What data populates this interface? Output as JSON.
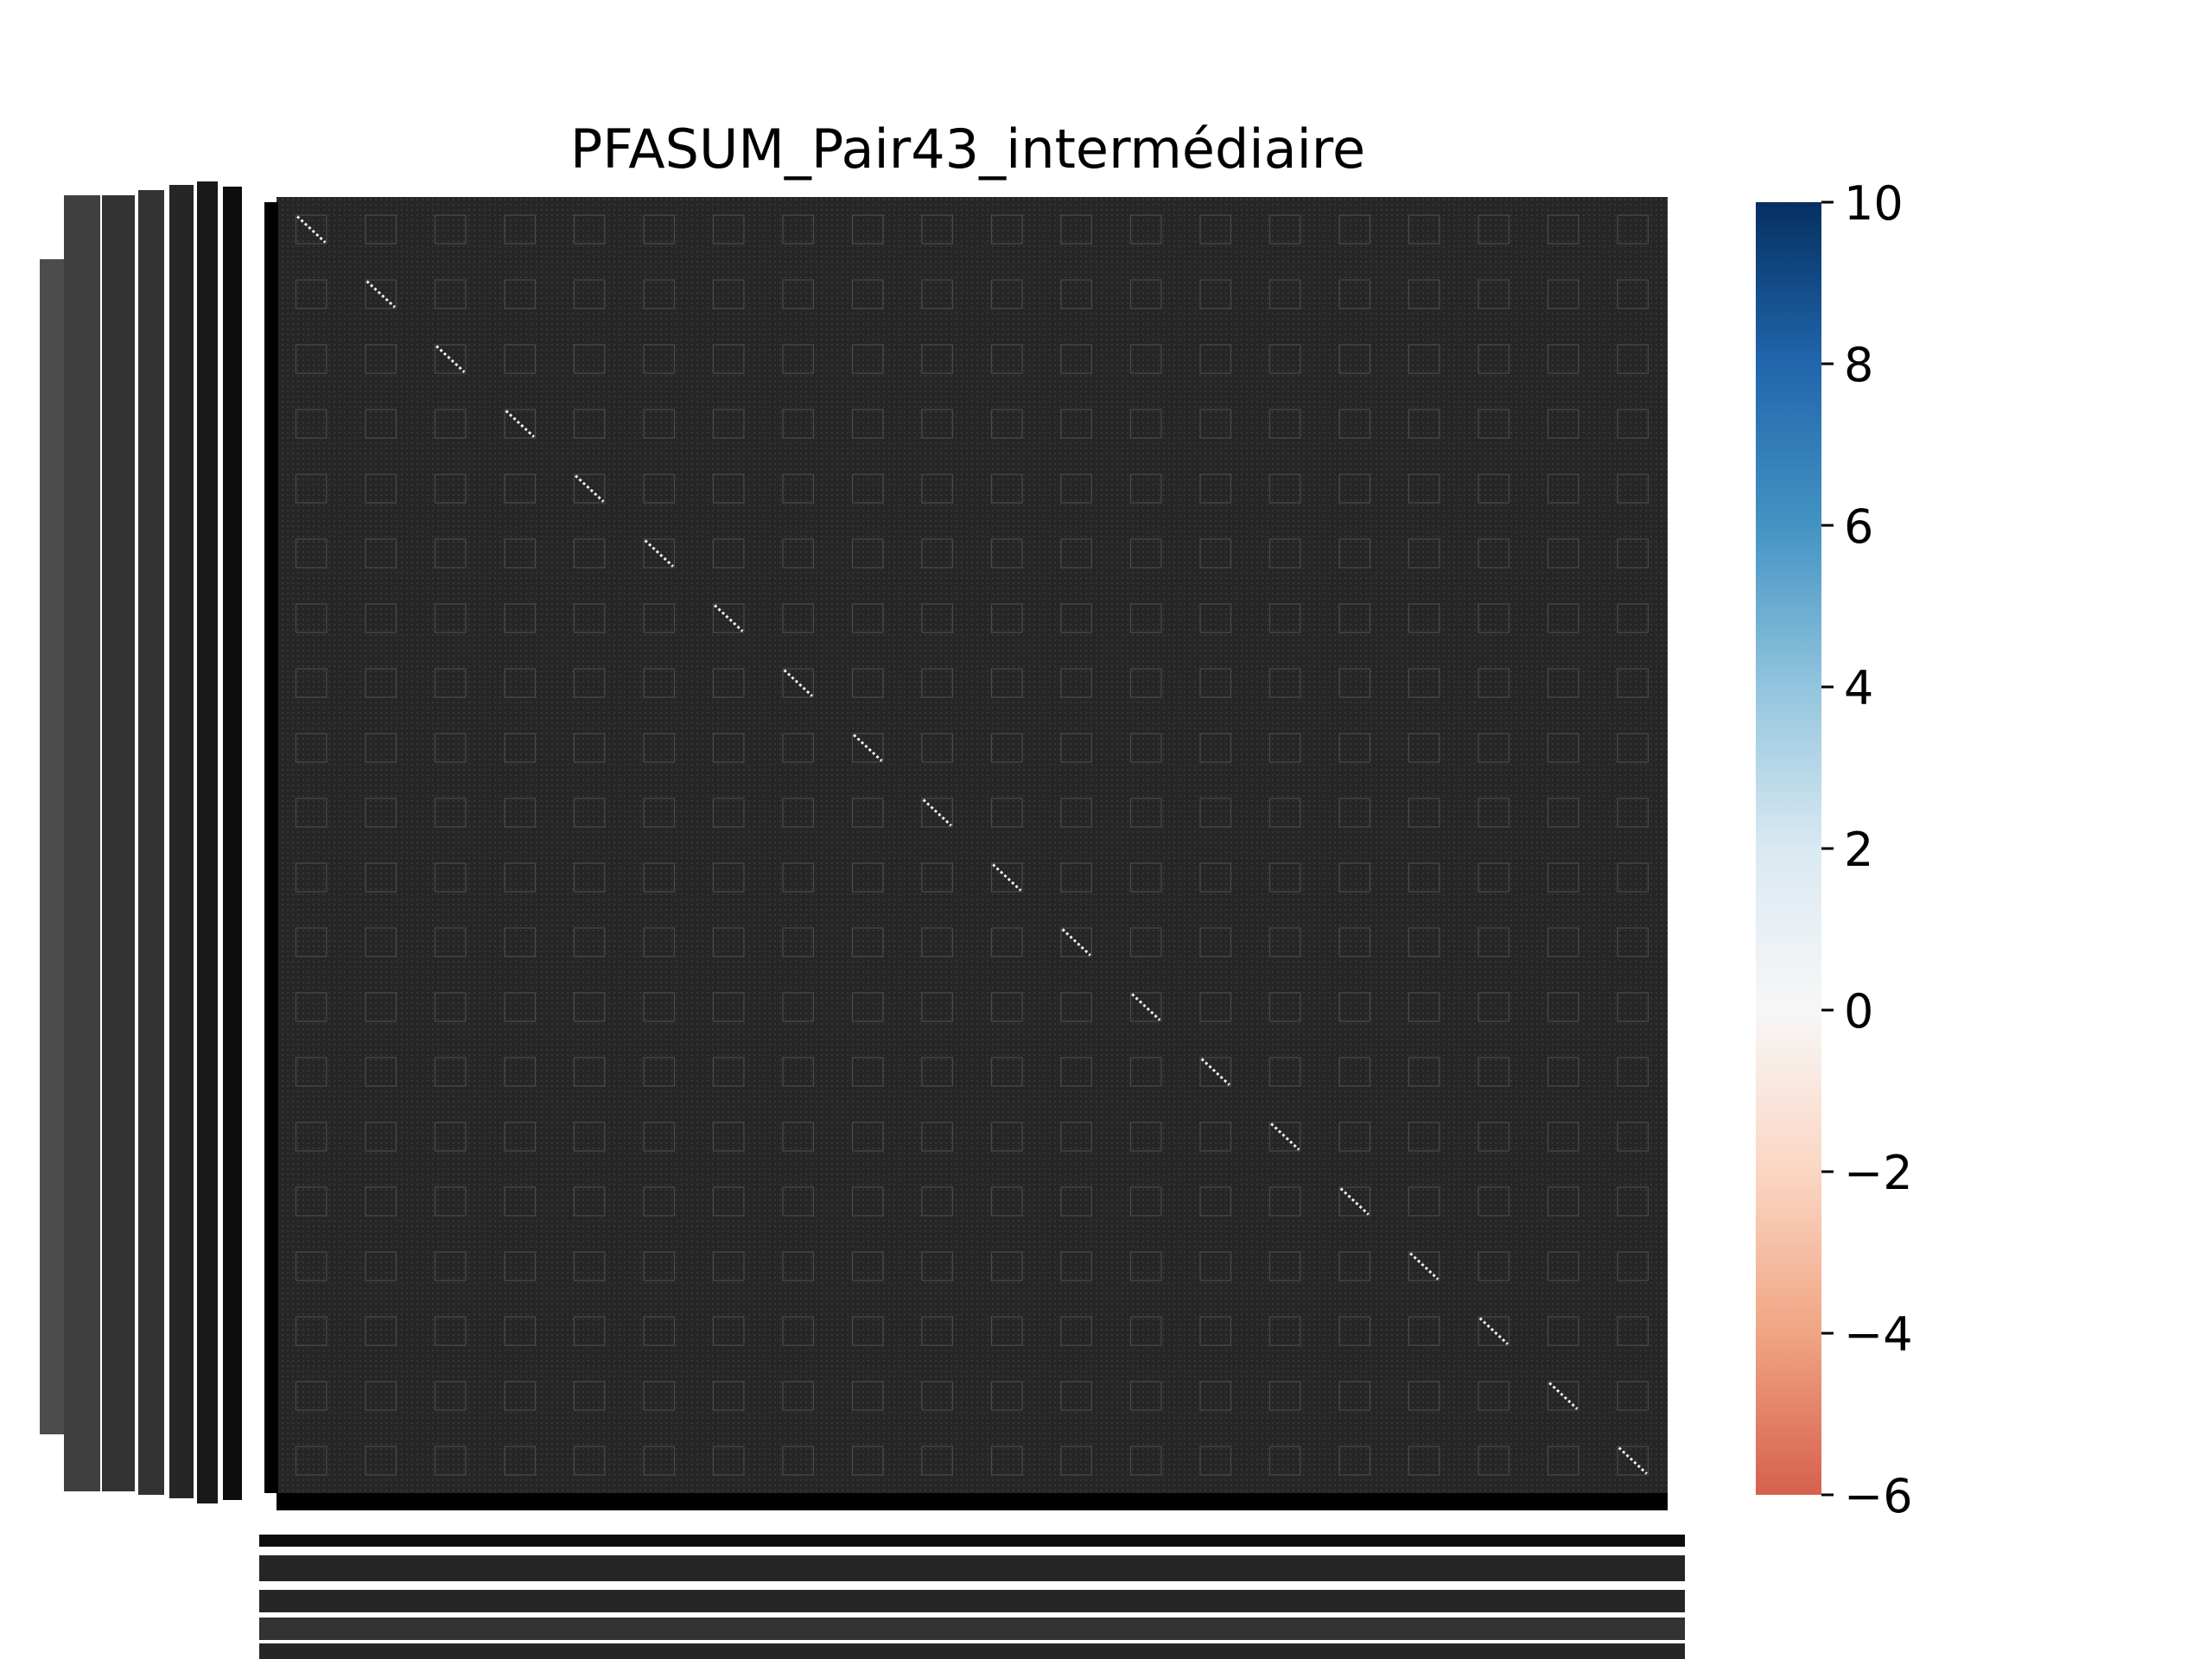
{
  "chart_data": {
    "type": "heatmap",
    "title": "PFASUM_Pair43_intermédiaire",
    "grid_blocks": 20,
    "colorbar": {
      "min": -6,
      "max": 10,
      "ticks": [
        10,
        8,
        6,
        4,
        2,
        0,
        -2,
        -4,
        -6
      ],
      "tick_labels": [
        "10",
        "8",
        "6",
        "4",
        "2",
        "0",
        "−2",
        "−4",
        "−6"
      ],
      "colormap": "RdBu",
      "colors": {
        "low": "#d6604d",
        "mid": "#f7f7f7",
        "high": "#053061"
      }
    },
    "cell_background": "#262626",
    "diagonal_color": "#f0f0f0"
  }
}
